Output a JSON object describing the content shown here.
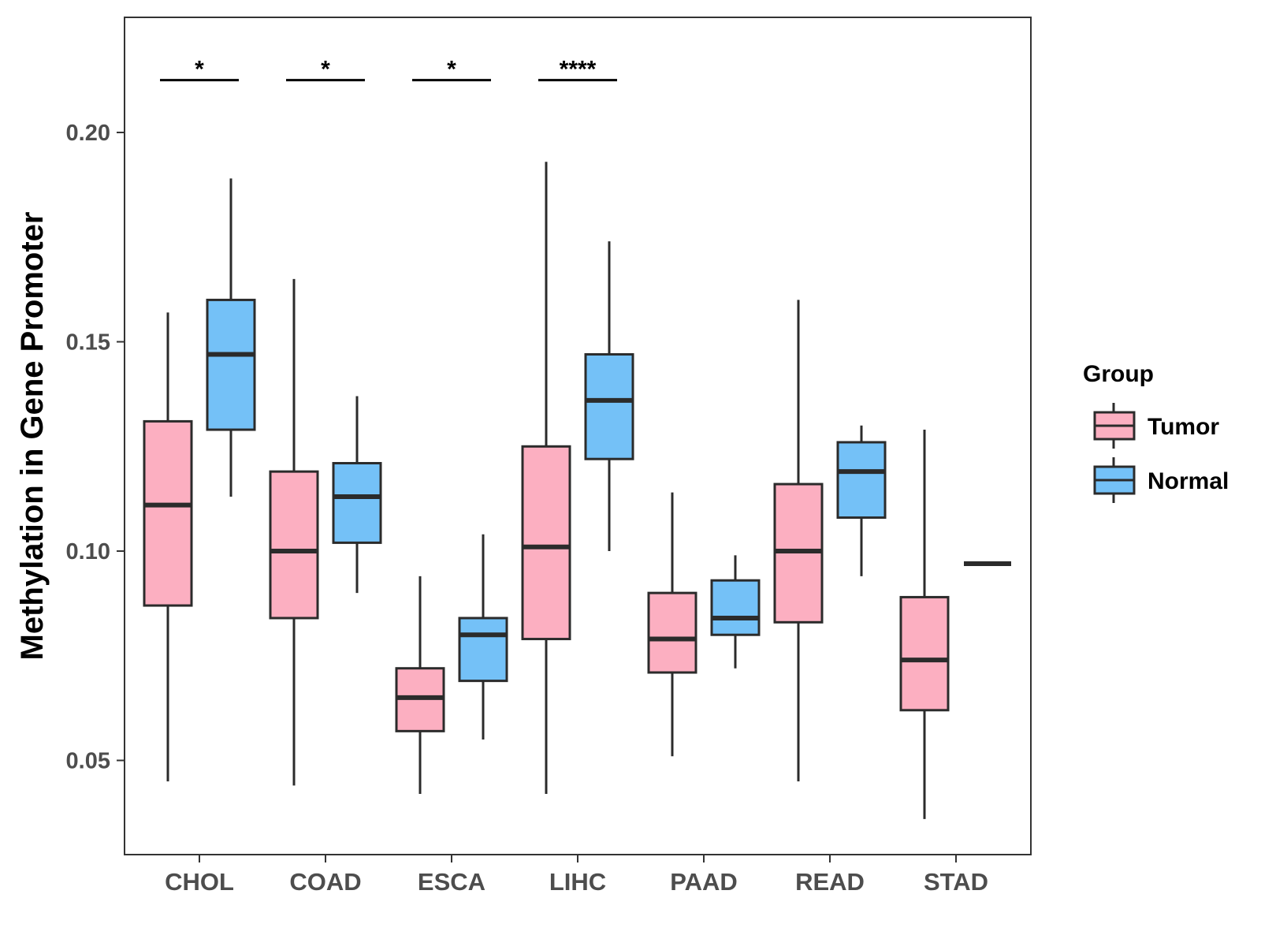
{
  "chart_data": {
    "type": "boxplot",
    "title": "",
    "xlabel": "",
    "ylabel": "Methylation in Gene Promoter",
    "ylim": [
      0.0275,
      0.2275
    ],
    "yticks": [
      0.05,
      0.1,
      0.15,
      0.2
    ],
    "ytick_labels": [
      "0.05",
      "0.10",
      "0.15",
      "0.20"
    ],
    "grid": false,
    "legend_position": "right",
    "categories": [
      "CHOL",
      "COAD",
      "ESCA",
      "LIHC",
      "PAAD",
      "READ",
      "STAD"
    ],
    "series": [
      {
        "name": "Tumor",
        "color": "#FCAFC1",
        "boxes": [
          {
            "category": "CHOL",
            "whisker_low": 0.045,
            "q1": 0.087,
            "median": 0.111,
            "q3": 0.131,
            "whisker_high": 0.157
          },
          {
            "category": "COAD",
            "whisker_low": 0.044,
            "q1": 0.084,
            "median": 0.1,
            "q3": 0.119,
            "whisker_high": 0.165
          },
          {
            "category": "ESCA",
            "whisker_low": 0.042,
            "q1": 0.057,
            "median": 0.065,
            "q3": 0.072,
            "whisker_high": 0.094
          },
          {
            "category": "LIHC",
            "whisker_low": 0.042,
            "q1": 0.079,
            "median": 0.101,
            "q3": 0.125,
            "whisker_high": 0.193
          },
          {
            "category": "PAAD",
            "whisker_low": 0.051,
            "q1": 0.071,
            "median": 0.079,
            "q3": 0.09,
            "whisker_high": 0.114
          },
          {
            "category": "READ",
            "whisker_low": 0.045,
            "q1": 0.083,
            "median": 0.1,
            "q3": 0.116,
            "whisker_high": 0.16
          },
          {
            "category": "STAD",
            "whisker_low": 0.036,
            "q1": 0.062,
            "median": 0.074,
            "q3": 0.089,
            "whisker_high": 0.129
          }
        ]
      },
      {
        "name": "Normal",
        "color": "#74C1F7",
        "boxes": [
          {
            "category": "CHOL",
            "whisker_low": 0.113,
            "q1": 0.129,
            "median": 0.147,
            "q3": 0.16,
            "whisker_high": 0.189
          },
          {
            "category": "COAD",
            "whisker_low": 0.09,
            "q1": 0.102,
            "median": 0.113,
            "q3": 0.121,
            "whisker_high": 0.137
          },
          {
            "category": "ESCA",
            "whisker_low": 0.055,
            "q1": 0.069,
            "median": 0.08,
            "q3": 0.084,
            "whisker_high": 0.104
          },
          {
            "category": "LIHC",
            "whisker_low": 0.1,
            "q1": 0.122,
            "median": 0.136,
            "q3": 0.147,
            "whisker_high": 0.174
          },
          {
            "category": "PAAD",
            "whisker_low": 0.072,
            "q1": 0.08,
            "median": 0.084,
            "q3": 0.093,
            "whisker_high": 0.099
          },
          {
            "category": "READ",
            "whisker_low": 0.094,
            "q1": 0.108,
            "median": 0.119,
            "q3": 0.126,
            "whisker_high": 0.13
          },
          {
            "category": "STAD",
            "whisker_low": 0.097,
            "q1": 0.097,
            "median": 0.097,
            "q3": 0.097,
            "whisker_high": 0.097
          }
        ]
      }
    ],
    "annotations": [
      {
        "category": "CHOL",
        "label": "*",
        "y": 0.2125
      },
      {
        "category": "COAD",
        "label": "*",
        "y": 0.2125
      },
      {
        "category": "ESCA",
        "label": "*",
        "y": 0.2125
      },
      {
        "category": "LIHC",
        "label": "****",
        "y": 0.2125
      }
    ],
    "legend": {
      "title": "Group",
      "entries": [
        "Tumor",
        "Normal"
      ]
    }
  }
}
